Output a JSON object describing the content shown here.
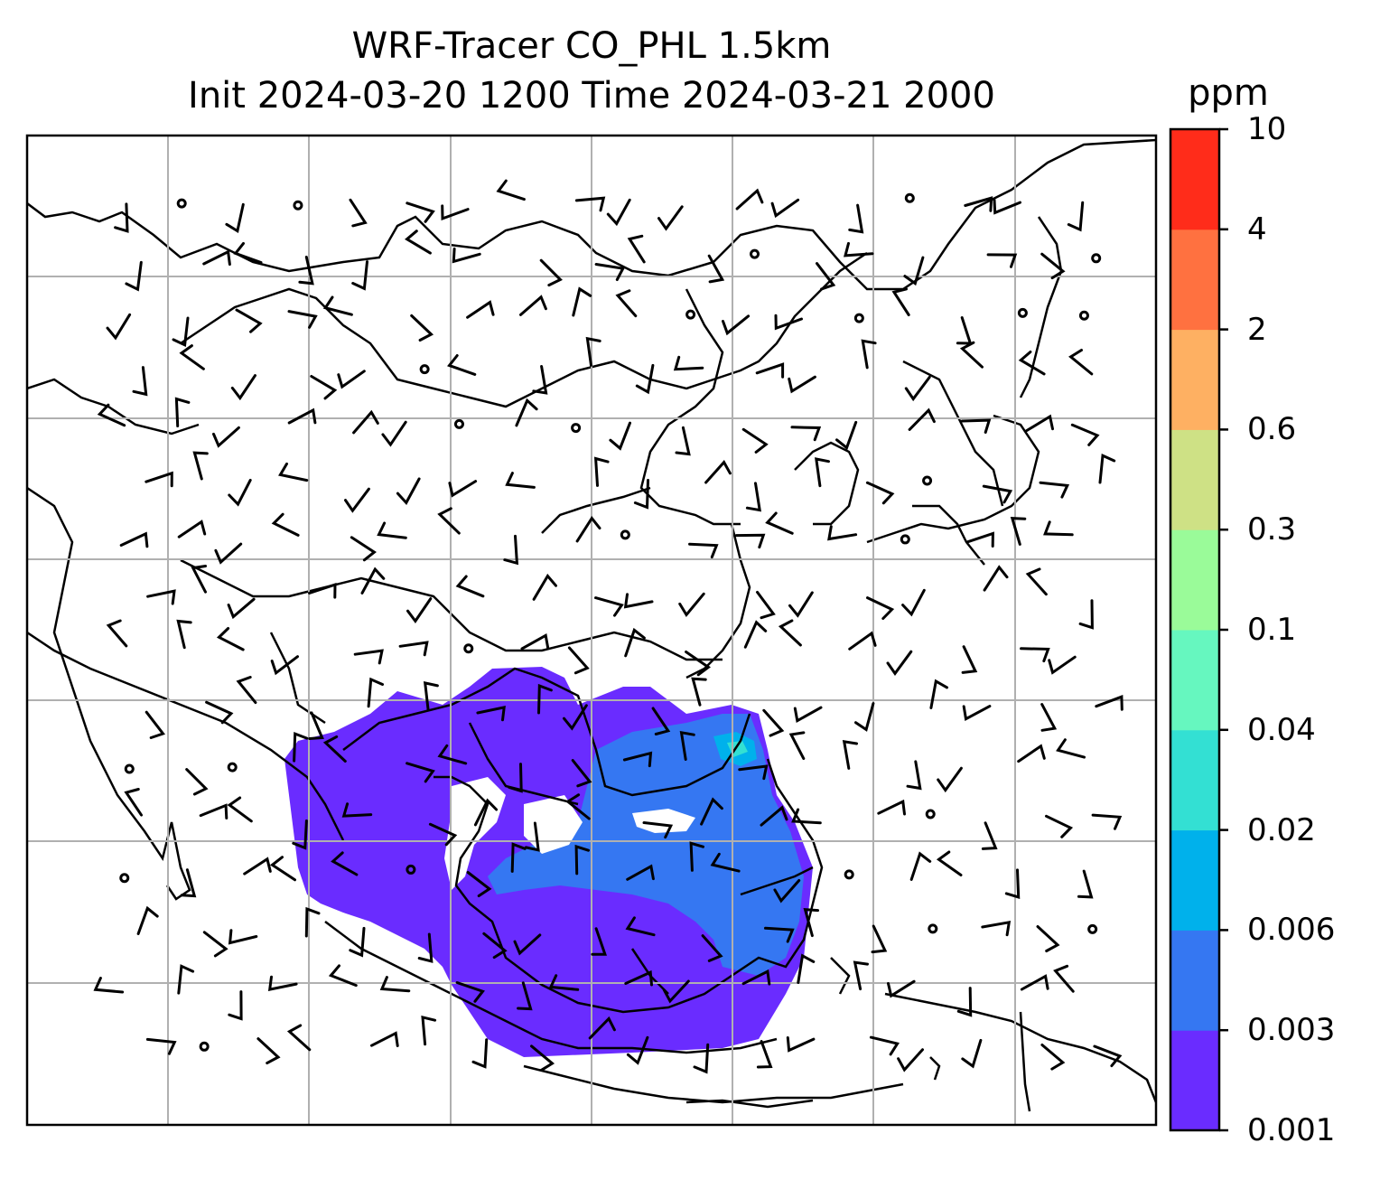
{
  "chart_data": {
    "type": "map",
    "title": "WRF-Tracer CO_PHL 1.5km",
    "subtitle": "Init 2024-03-20 1200 Time 2024-03-21 2000",
    "colorbar": {
      "unit": "ppm",
      "levels": [
        "0.001",
        "0.003",
        "0.006",
        "0.02",
        "0.04",
        "0.1",
        "0.3",
        "0.6",
        "2",
        "4",
        "10"
      ],
      "colors": [
        "#6a2cff",
        "#3577f2",
        "#00b1eb",
        "#33e0d3",
        "#66f7bf",
        "#9afb99",
        "#cee185",
        "#feb062",
        "#ff7140",
        "#ff2c1a"
      ]
    },
    "plume_present": true,
    "dominant_plume_level": "0.001–0.003",
    "secondary_plume_level": "0.003–0.006",
    "grid": true,
    "overlays": [
      "coastlines",
      "country borders",
      "wind barbs"
    ]
  }
}
